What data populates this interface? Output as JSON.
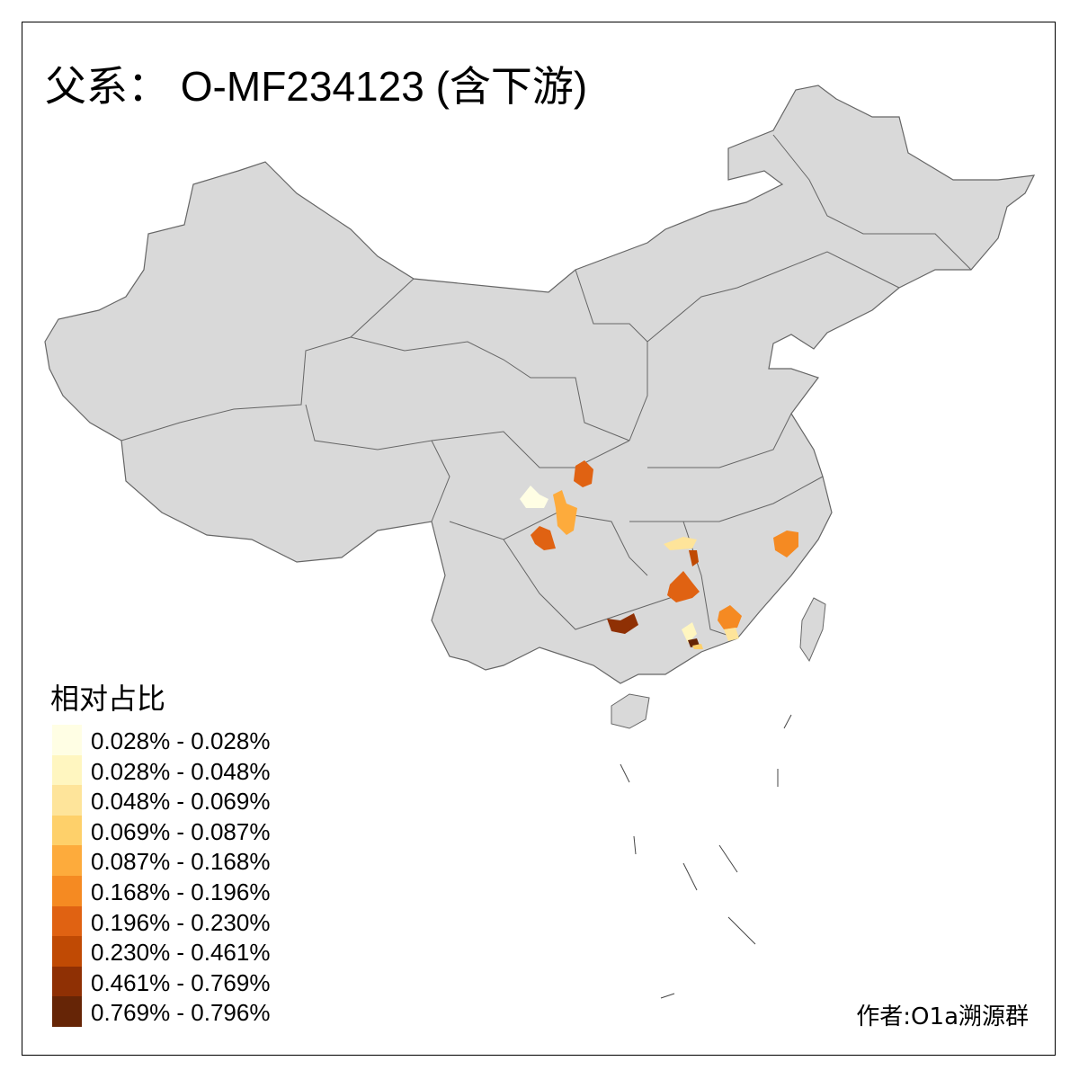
{
  "title": "父系： O-MF234123 (含下游)",
  "legend": {
    "title": "相对占比",
    "classes": [
      {
        "label": "0.028% - 0.028%",
        "color": "#FFFEE4"
      },
      {
        "label": "0.028% - 0.048%",
        "color": "#FFF6C0"
      },
      {
        "label": "0.048% - 0.069%",
        "color": "#FEE49A"
      },
      {
        "label": "0.069% - 0.087%",
        "color": "#FED06A"
      },
      {
        "label": "0.087% - 0.168%",
        "color": "#FDAB3C"
      },
      {
        "label": "0.168% - 0.196%",
        "color": "#F58A22"
      },
      {
        "label": "0.196% - 0.230%",
        "color": "#E06212"
      },
      {
        "label": "0.230% - 0.461%",
        "color": "#C04A04"
      },
      {
        "label": "0.461% - 0.769%",
        "color": "#8F3004"
      },
      {
        "label": "0.769% - 0.796%",
        "color": "#662506"
      }
    ]
  },
  "map": {
    "base_color": "#D9D9D9",
    "border_color": "#666666"
  },
  "credit": "作者:O1a溯源群"
}
